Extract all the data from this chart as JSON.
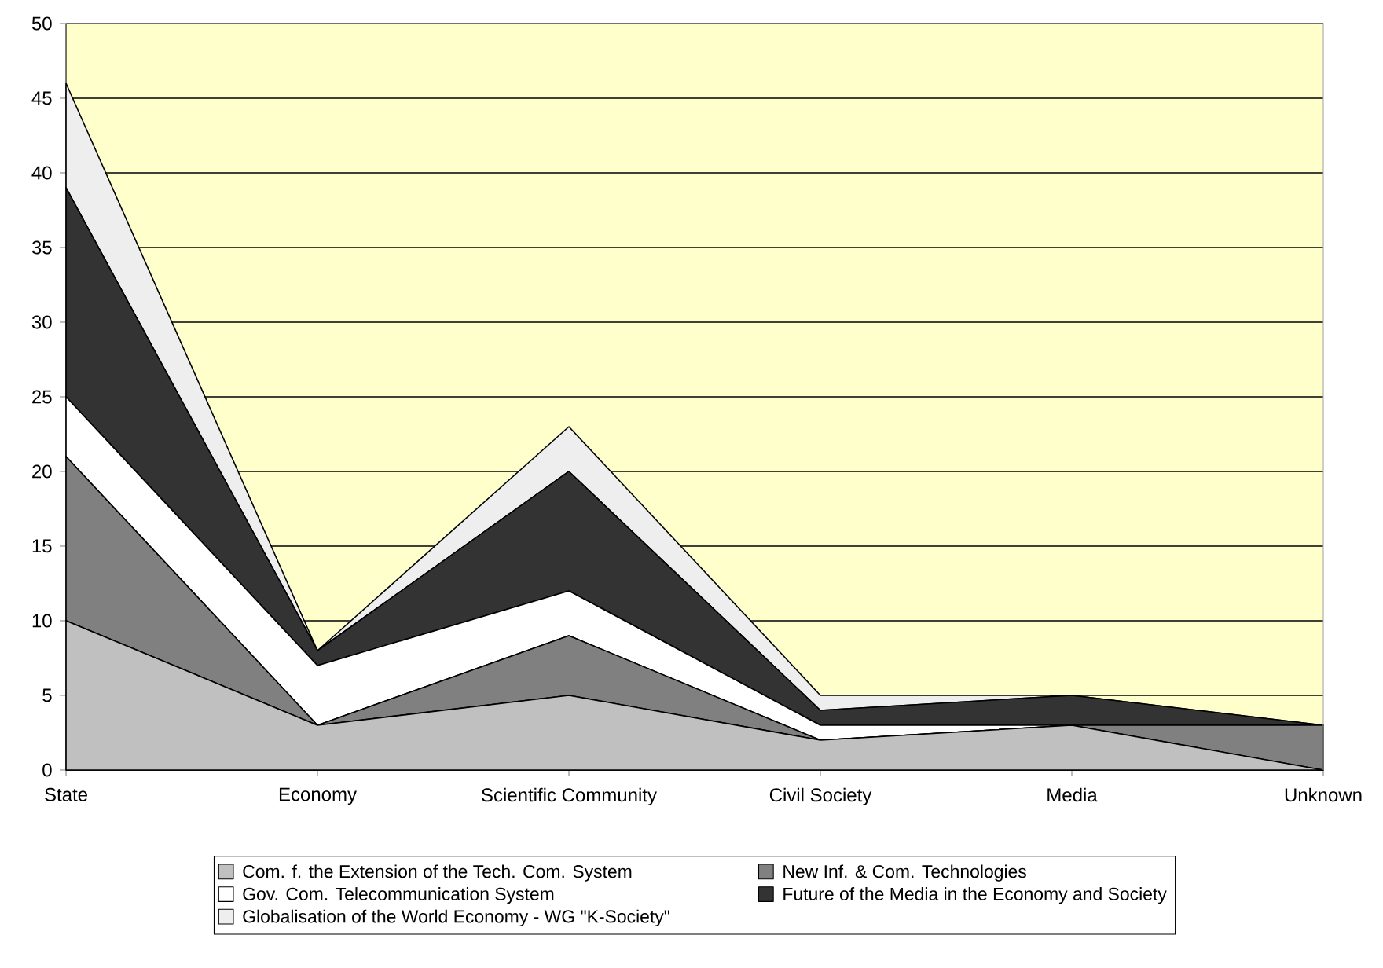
{
  "chart_data": {
    "type": "area",
    "stacked": true,
    "categories": [
      "State",
      "Economy",
      "Scientific Community",
      "Civil Society",
      "Media",
      "Unknown"
    ],
    "series": [
      {
        "name": "Com. f. the Extension of the Tech. Com. System",
        "color": "#c0c0c0",
        "values": [
          10,
          3,
          5,
          2,
          3,
          0
        ]
      },
      {
        "name": "New Inf. & Com. Technologies",
        "color": "#808080",
        "values": [
          11,
          0,
          4,
          0,
          0,
          3
        ]
      },
      {
        "name": "Gov. Com. Telecommunication System",
        "color": "#ffffff",
        "values": [
          4,
          4,
          3,
          1,
          0,
          0
        ]
      },
      {
        "name": "Future of the Media in the Economy and Society",
        "color": "#333333",
        "values": [
          14,
          1,
          8,
          1,
          2,
          0
        ]
      },
      {
        "name": "Globalisation of the World Economy - WG \"K-Society\"",
        "color": "#eeeeee",
        "values": [
          7,
          0,
          3,
          1,
          0,
          0
        ]
      }
    ],
    "ylim": [
      0,
      50
    ],
    "yticks": [
      0,
      5,
      10,
      15,
      20,
      25,
      30,
      35,
      40,
      45,
      50
    ],
    "grid": "y",
    "legend": "bottom"
  }
}
